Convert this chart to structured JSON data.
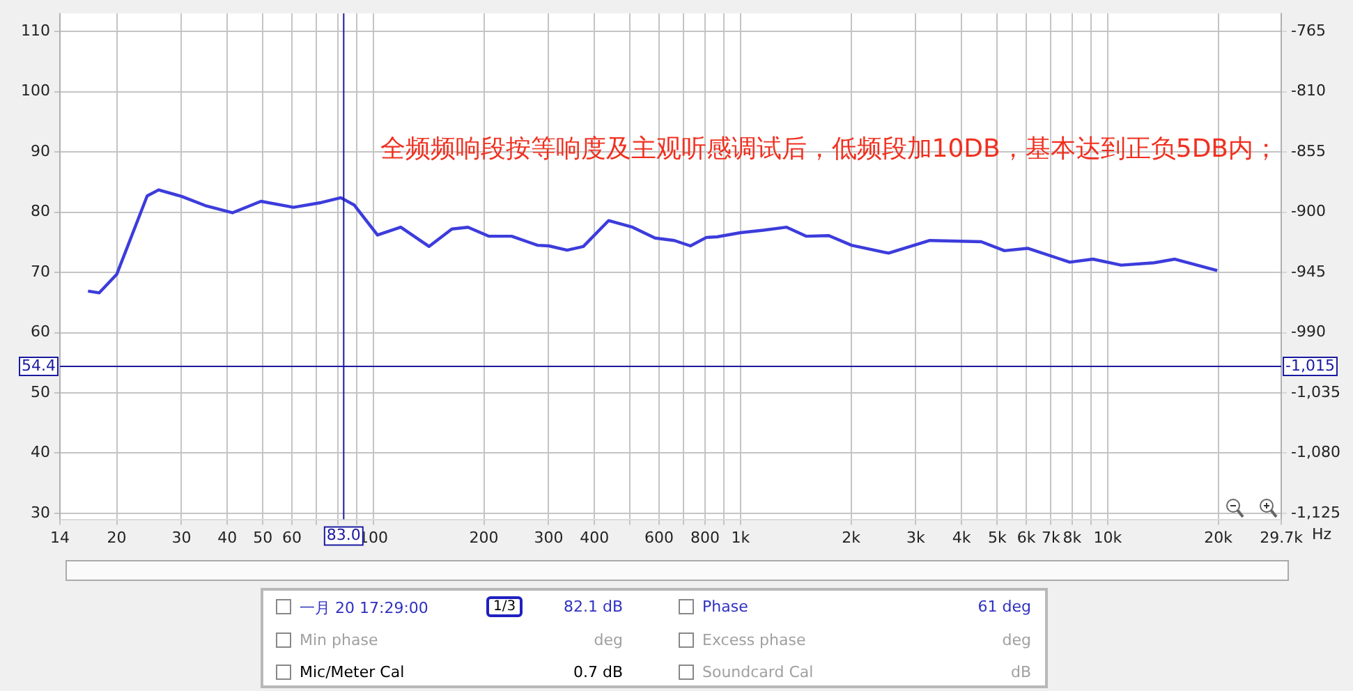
{
  "chart_data": [
    {
      "type": "line",
      "xlabel": "Hz",
      "x": [
        16.7,
        17.9,
        20,
        24.2,
        26,
        30.1,
        34.8,
        41.3,
        49.4,
        60.6,
        72.2,
        81.5,
        88.6,
        102.6,
        118.7,
        141.8,
        163.6,
        181,
        206.5,
        238,
        280,
        300.5,
        337,
        373,
        437,
        508,
        585,
        660,
        730,
        807,
        863,
        1000,
        1153,
        1335,
        1512,
        1739,
        2006,
        2530,
        3277,
        4523,
        5233,
        6048,
        7880,
        9113,
        10880,
        13370,
        15240,
        19870
      ],
      "series": [
        {
          "color": "#3c3cdc",
          "values": [
            66.9,
            66.6,
            69.7,
            82.7,
            83.7,
            82.6,
            81.1,
            79.9,
            81.8,
            80.8,
            81.6,
            82.4,
            81.2,
            76.2,
            77.5,
            74.3,
            77.2,
            77.5,
            76.0,
            76.0,
            74.5,
            74.4,
            73.7,
            74.3,
            78.6,
            77.5,
            75.7,
            75.3,
            74.4,
            75.8,
            75.9,
            76.6,
            77.0,
            77.5,
            76.0,
            76.1,
            74.5,
            73.2,
            75.3,
            75.1,
            73.6,
            74.0,
            71.7,
            72.2,
            71.2,
            71.6,
            72.2,
            70.3
          ]
        }
      ],
      "log": "x",
      "xlim": [
        14,
        29700
      ],
      "xticks": [
        {
          "value": 14,
          "label": "14"
        },
        20,
        30,
        40,
        50,
        60,
        {
          "value": 70,
          "label": null
        },
        {
          "value": 80,
          "label": null
        },
        {
          "value": 90,
          "label": null
        },
        100,
        200,
        300,
        400,
        {
          "value": 500,
          "label": null
        },
        600,
        800,
        {
          "value": 700,
          "label": null
        },
        {
          "value": 900,
          "label": null
        },
        {
          "value": 1000,
          "label": "1k"
        },
        {
          "value": 2000,
          "label": "2k"
        },
        {
          "value": 3000,
          "label": "3k"
        },
        {
          "value": 4000,
          "label": "4k"
        },
        {
          "value": 5000,
          "label": "5k"
        },
        {
          "value": 6000,
          "label": "6k"
        },
        {
          "value": 7000,
          "label": "7k"
        },
        {
          "value": 8000,
          "label": "8k"
        },
        {
          "value": 9000,
          "label": null
        },
        {
          "value": 10000,
          "label": "10k"
        },
        {
          "value": 20000,
          "label": "20k"
        },
        {
          "value": 29700,
          "label": "29.7k"
        }
      ],
      "ylim": [
        29,
        113
      ],
      "yticks": [
        30,
        40,
        50,
        60,
        70,
        80,
        90,
        100,
        110
      ],
      "y2lim": [
        -1129.5,
        -751.5
      ],
      "y2ticks": [
        -765,
        -810,
        -855,
        -900,
        -945,
        -990,
        {
          "value": -1035,
          "label": "-1,035"
        },
        {
          "value": -1080,
          "label": "-1,080"
        },
        {
          "value": -1125,
          "label": "-1,125"
        }
      ],
      "ref_lines": [
        {
          "axis": "y",
          "value": 54.4,
          "label": "54.4",
          "color": "#1a1aa0"
        },
        {
          "axis": "x",
          "value": 83.0,
          "label": "83.0",
          "color": "#1a1aa0"
        }
      ],
      "annotations": [
        "全频频响段按等响度及主观听感调试后，低频段加10DB，基本达到正负5DB内；",
        {
          "text": "-1,015",
          "y": 54.4
        }
      ],
      "grid": true,
      "marker": "none",
      "line_style": "solid"
    },
    {
      "type": "other",
      "annotations": [
        "一月 20 17:29:00",
        "1/3",
        "82.1 dB",
        "Phase",
        "61 deg",
        "Min phase",
        "deg",
        "Excess phase",
        "deg",
        "Mic/Meter Cal",
        "0.7 dB",
        "Soundcard Cal",
        "dB"
      ]
    }
  ]
}
